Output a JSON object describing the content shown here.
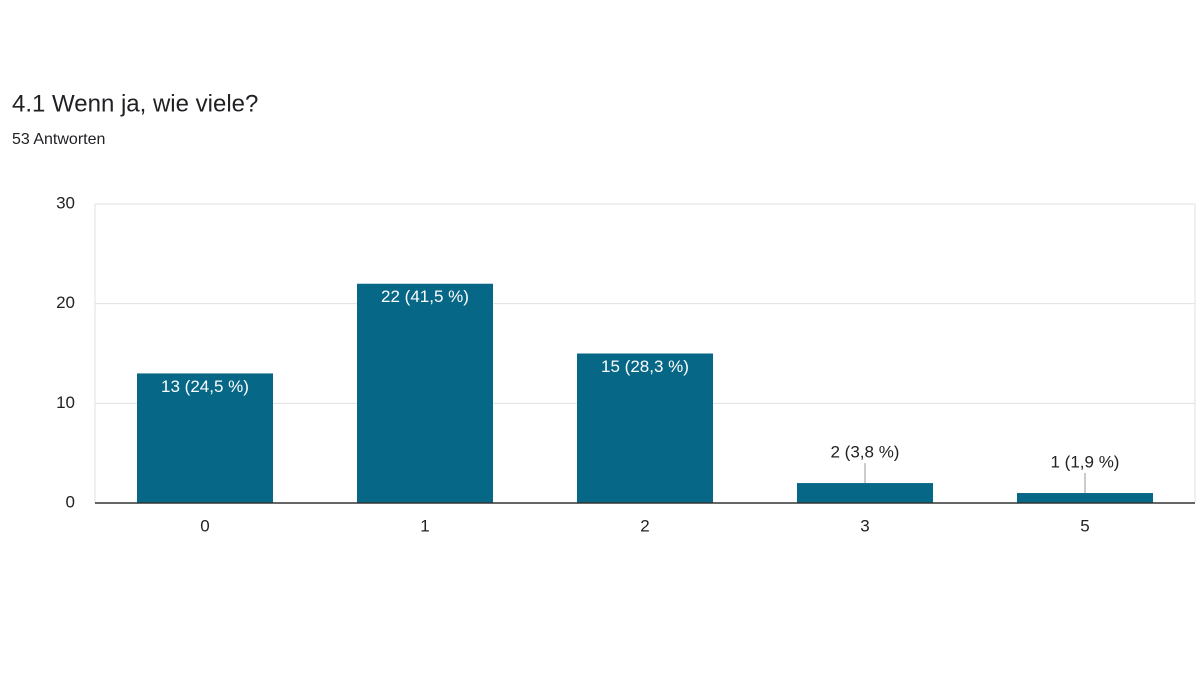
{
  "chart_data": {
    "type": "bar",
    "title": "4.1 Wenn ja, wie viele?",
    "subtitle": "53 Antworten",
    "categories": [
      "0",
      "1",
      "2",
      "3",
      "5"
    ],
    "values": [
      13,
      22,
      15,
      2,
      1
    ],
    "value_labels": [
      "13 (24,5 %)",
      "22 (41,5 %)",
      "15 (28,3 %)",
      "2 (3,8 %)",
      "1 (1,9 %)"
    ],
    "color": "#066787",
    "ylim": [
      0,
      30
    ],
    "yticks": [
      0,
      10,
      20,
      30
    ],
    "grid": true
  }
}
